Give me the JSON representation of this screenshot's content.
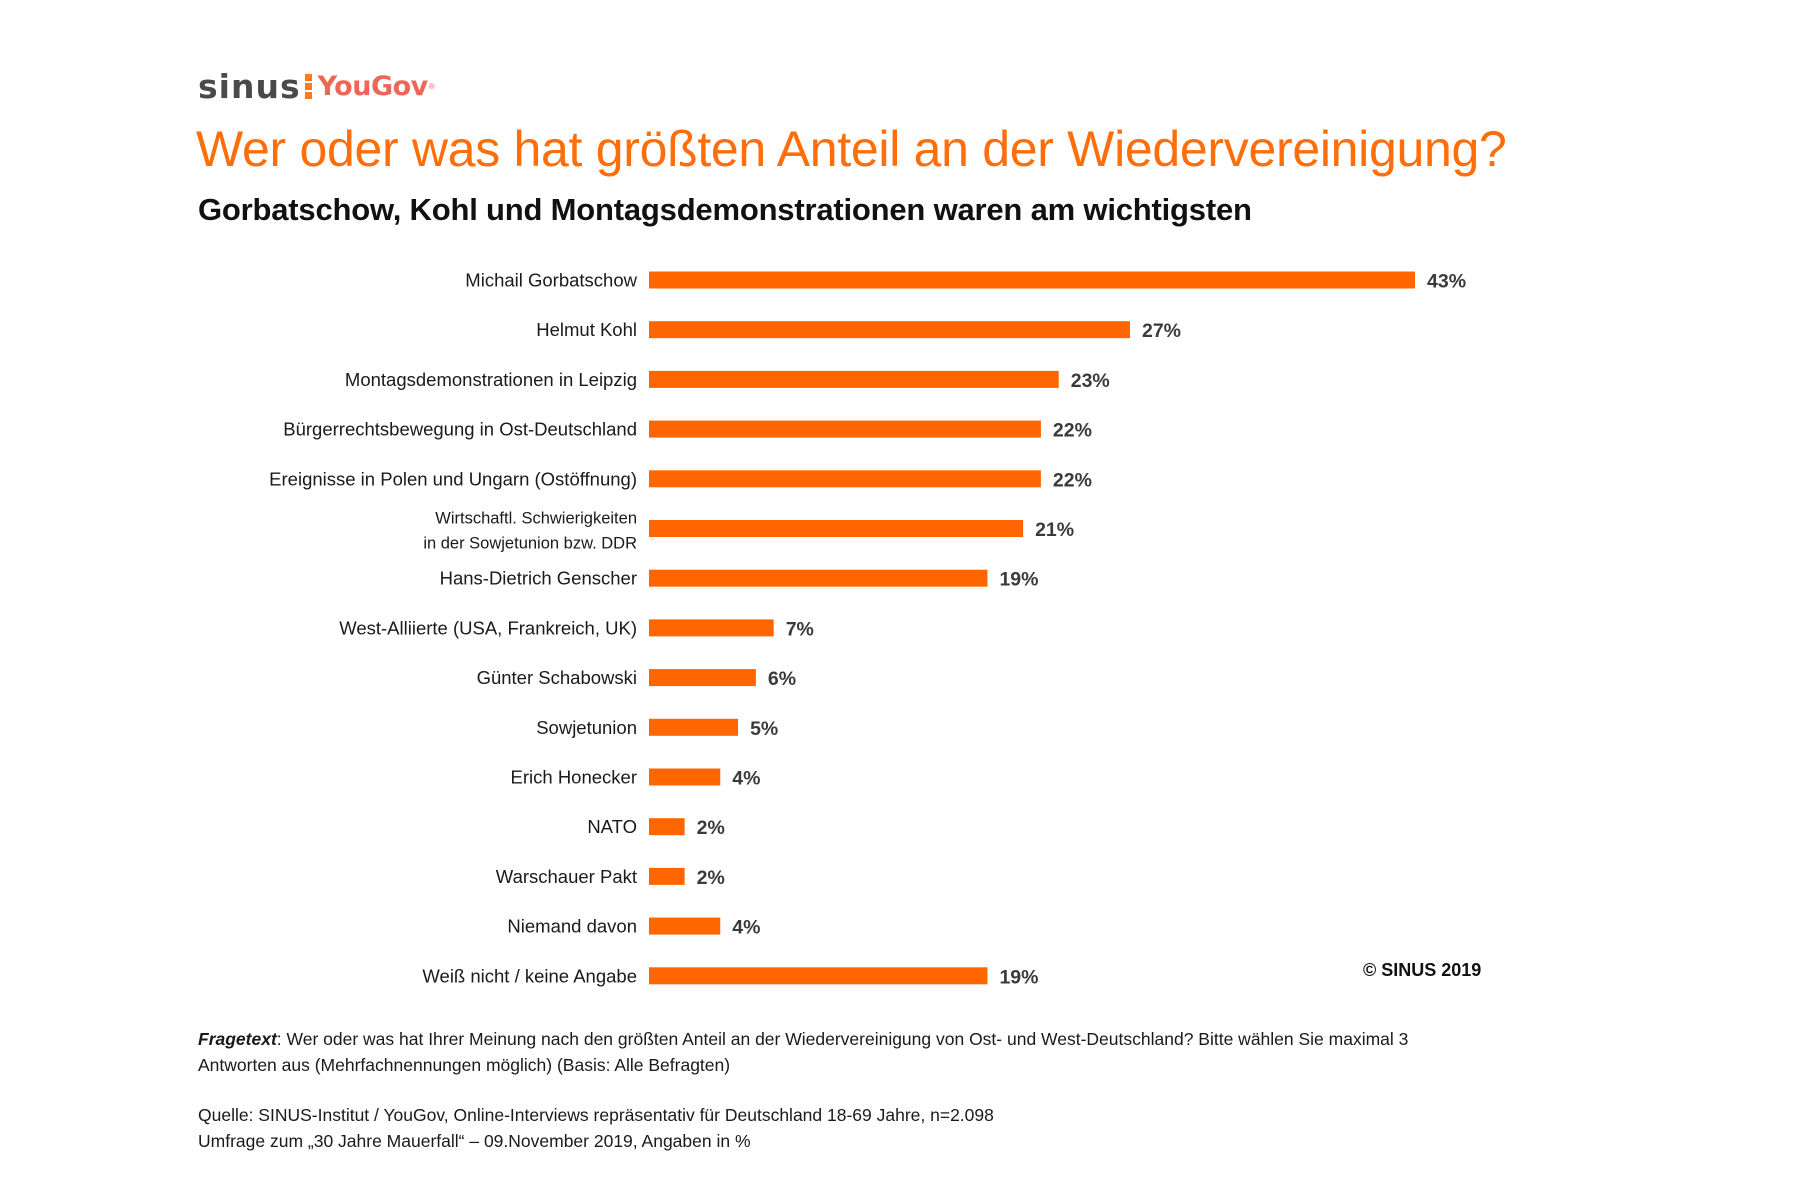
{
  "logo": {
    "sinus": "sinus",
    "yougov": "YouGov",
    "reg_mark": "®",
    "colors": {
      "sinus": "#4a4a4a",
      "separator": "#ff7b1c",
      "yougov": "#ee6655"
    }
  },
  "copyright": "© SINUS 2019",
  "footer": {
    "question_label": "Fragetext",
    "question_line1": ": Wer oder was hat Ihrer Meinung nach den größten Anteil an der Wiedervereinigung von Ost- und West-Deutschland? Bitte wählen Sie maximal 3",
    "question_line2": "Antworten aus (Mehrfachnennungen möglich) (Basis: Alle Befragten)",
    "source_line1": "Quelle: SINUS-Institut / YouGov, Online-Interviews repräsentativ für Deutschland 18-69 Jahre, n=2.098",
    "source_line2": "Umfrage zum „30 Jahre Mauerfall“ – 09.November 2019, Angaben in %"
  },
  "chart_data": {
    "type": "bar",
    "orientation": "horizontal",
    "title": "Wer oder was hat größten Anteil an der Wiedervereinigung?",
    "subtitle": "Gorbatschow, Kohl und Montagsdemonstrationen waren am wichtigsten",
    "xlabel": "",
    "ylabel": "",
    "unit": "%",
    "xlim": [
      0,
      43
    ],
    "grid": false,
    "legend": "none",
    "bar_color": "#ff6600",
    "categories": [
      [
        "Michail Gorbatschow"
      ],
      [
        "Helmut Kohl"
      ],
      [
        "Montagsdemonstrationen in Leipzig"
      ],
      [
        "Bürgerrechtsbewegung in Ost-Deutschland"
      ],
      [
        "Ereignisse in Polen und Ungarn (Ostöffnung)"
      ],
      [
        "Wirtschaftl. Schwierigkeiten",
        "in der Sowjetunion bzw. DDR"
      ],
      [
        "Hans-Dietrich Genscher"
      ],
      [
        "West-Alliierte (USA, Frankreich, UK)"
      ],
      [
        "Günter Schabowski"
      ],
      [
        "Sowjetunion"
      ],
      [
        "Erich Honecker"
      ],
      [
        "NATO"
      ],
      [
        "Warschauer Pakt"
      ],
      [
        "Niemand davon"
      ],
      [
        "Weiß nicht / keine Angabe"
      ]
    ],
    "values": [
      43,
      27,
      23,
      22,
      22,
      21,
      19,
      7,
      6,
      5,
      4,
      2,
      2,
      4,
      19
    ],
    "value_labels": [
      "43%",
      "27%",
      "23%",
      "22%",
      "22%",
      "21%",
      "19%",
      "7%",
      "6%",
      "5%",
      "4%",
      "2%",
      "2%",
      "4%",
      "19%"
    ]
  }
}
